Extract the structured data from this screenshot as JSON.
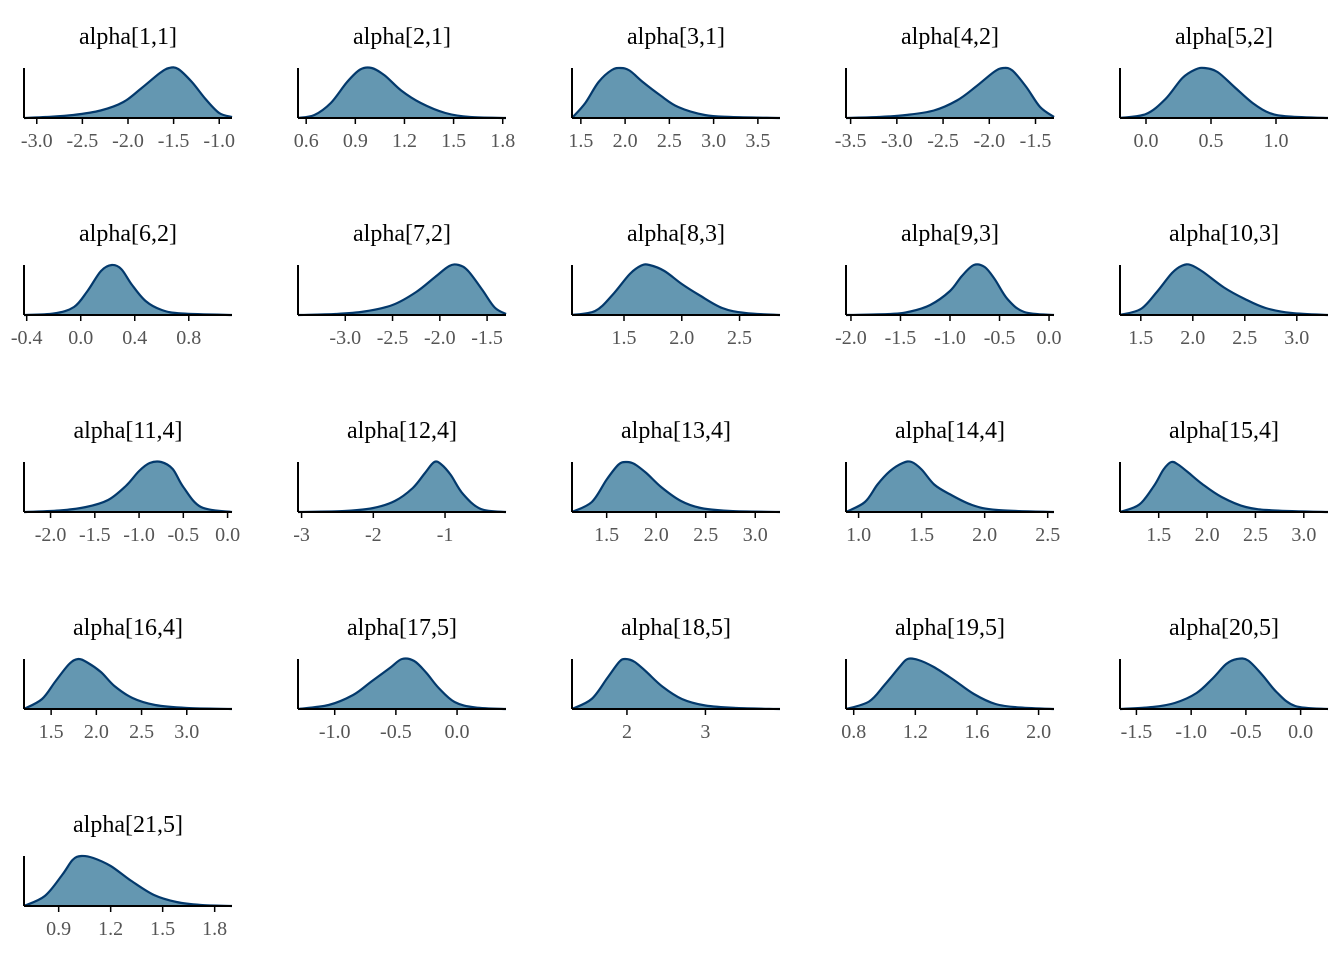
{
  "colors": {
    "fill": "#6497b1",
    "line": "#03396c",
    "axis": "#000000",
    "tick_text": "#555555"
  },
  "chart_data": [
    {
      "type": "area",
      "title": "alpha[1,1]",
      "xlim": [
        -3.14,
        -0.86
      ],
      "ticks": [
        -3.0,
        -2.5,
        -2.0,
        -1.5,
        -1.0
      ],
      "tick_labels": [
        "-3.0",
        "-2.5",
        "-2.0",
        "-1.5",
        "-1.0"
      ],
      "x": [
        -3.14,
        -2.9,
        -2.6,
        -2.3,
        -2.05,
        -1.85,
        -1.65,
        -1.55,
        -1.45,
        -1.3,
        -1.15,
        -1.0,
        -0.86
      ],
      "y": [
        0.0,
        0.02,
        0.06,
        0.15,
        0.32,
        0.6,
        0.9,
        1.0,
        0.98,
        0.72,
        0.38,
        0.1,
        0.02
      ]
    },
    {
      "type": "area",
      "title": "alpha[2,1]",
      "xlim": [
        0.55,
        1.82
      ],
      "ticks": [
        0.6,
        0.9,
        1.2,
        1.5,
        1.8
      ],
      "tick_labels": [
        "0.6",
        "0.9",
        "1.2",
        "1.5",
        "1.8"
      ],
      "x": [
        0.55,
        0.65,
        0.75,
        0.85,
        0.93,
        1.0,
        1.08,
        1.18,
        1.3,
        1.45,
        1.6,
        1.82
      ],
      "y": [
        0.0,
        0.06,
        0.3,
        0.72,
        0.97,
        1.0,
        0.85,
        0.55,
        0.3,
        0.1,
        0.02,
        0.0
      ]
    },
    {
      "type": "area",
      "title": "alpha[3,1]",
      "xlim": [
        1.4,
        3.75
      ],
      "ticks": [
        1.5,
        2.0,
        2.5,
        3.0,
        3.5
      ],
      "tick_labels": [
        "1.5",
        "2.0",
        "2.5",
        "3.0",
        "3.5"
      ],
      "x": [
        1.4,
        1.55,
        1.7,
        1.85,
        1.95,
        2.05,
        2.2,
        2.4,
        2.6,
        2.9,
        3.2,
        3.75
      ],
      "y": [
        0.0,
        0.3,
        0.72,
        0.96,
        1.0,
        0.95,
        0.72,
        0.45,
        0.22,
        0.06,
        0.02,
        0.0
      ]
    },
    {
      "type": "area",
      "title": "alpha[4,2]",
      "xlim": [
        -3.55,
        -1.3
      ],
      "ticks": [
        -3.5,
        -3.0,
        -2.5,
        -2.0,
        -1.5
      ],
      "tick_labels": [
        "-3.5",
        "-3.0",
        "-2.5",
        "-2.0",
        "-1.5"
      ],
      "x": [
        -3.55,
        -3.2,
        -2.9,
        -2.6,
        -2.35,
        -2.15,
        -1.95,
        -1.85,
        -1.75,
        -1.6,
        -1.45,
        -1.3
      ],
      "y": [
        0.0,
        0.02,
        0.06,
        0.15,
        0.35,
        0.62,
        0.92,
        1.0,
        0.95,
        0.62,
        0.22,
        0.02
      ]
    },
    {
      "type": "area",
      "title": "alpha[5,2]",
      "xlim": [
        -0.2,
        1.4
      ],
      "ticks": [
        0.0,
        0.5,
        1.0
      ],
      "tick_labels": [
        "0.0",
        "0.5",
        "1.0"
      ],
      "x": [
        -0.2,
        0.0,
        0.15,
        0.28,
        0.38,
        0.45,
        0.55,
        0.68,
        0.82,
        0.95,
        1.1,
        1.4
      ],
      "y": [
        0.0,
        0.08,
        0.38,
        0.8,
        0.97,
        1.0,
        0.92,
        0.62,
        0.3,
        0.1,
        0.03,
        0.0
      ]
    },
    {
      "type": "area",
      "title": "alpha[6,2]",
      "xlim": [
        -0.42,
        1.12
      ],
      "ticks": [
        -0.4,
        0.0,
        0.4,
        0.8
      ],
      "tick_labels": [
        "-0.4",
        "0.0",
        "0.4",
        "0.8"
      ],
      "x": [
        -0.42,
        -0.2,
        -0.05,
        0.05,
        0.15,
        0.23,
        0.3,
        0.38,
        0.48,
        0.6,
        0.75,
        1.12
      ],
      "y": [
        0.0,
        0.03,
        0.16,
        0.48,
        0.88,
        1.0,
        0.92,
        0.6,
        0.28,
        0.1,
        0.03,
        0.0
      ]
    },
    {
      "type": "area",
      "title": "alpha[7,2]",
      "xlim": [
        -3.5,
        -1.3
      ],
      "ticks": [
        -3.0,
        -2.5,
        -2.0,
        -1.5
      ],
      "tick_labels": [
        "-3.0",
        "-2.5",
        "-2.0",
        "-1.5"
      ],
      "x": [
        -3.5,
        -3.1,
        -2.8,
        -2.5,
        -2.25,
        -2.05,
        -1.9,
        -1.8,
        -1.7,
        -1.55,
        -1.42,
        -1.3
      ],
      "y": [
        0.0,
        0.02,
        0.07,
        0.2,
        0.46,
        0.76,
        0.98,
        1.0,
        0.88,
        0.5,
        0.15,
        0.02
      ]
    },
    {
      "type": "area",
      "title": "alpha[8,3]",
      "xlim": [
        1.05,
        2.85
      ],
      "ticks": [
        1.5,
        2.0,
        2.5
      ],
      "tick_labels": [
        "1.5",
        "2.0",
        "2.5"
      ],
      "x": [
        1.05,
        1.25,
        1.4,
        1.55,
        1.65,
        1.72,
        1.85,
        2.0,
        2.15,
        2.35,
        2.55,
        2.85
      ],
      "y": [
        0.0,
        0.08,
        0.4,
        0.82,
        0.99,
        1.0,
        0.88,
        0.62,
        0.4,
        0.14,
        0.04,
        0.0
      ]
    },
    {
      "type": "area",
      "title": "alpha[9,3]",
      "xlim": [
        -2.05,
        0.05
      ],
      "ticks": [
        -2.0,
        -1.5,
        -1.0,
        -0.5,
        0.0
      ],
      "tick_labels": [
        "-2.0",
        "-1.5",
        "-1.0",
        "-0.5",
        "0.0"
      ],
      "x": [
        -2.05,
        -1.6,
        -1.4,
        -1.2,
        -1.0,
        -0.88,
        -0.76,
        -0.65,
        -0.55,
        -0.42,
        -0.25,
        0.05
      ],
      "y": [
        0.0,
        0.02,
        0.07,
        0.2,
        0.48,
        0.78,
        1.0,
        0.96,
        0.72,
        0.32,
        0.06,
        0.0
      ]
    },
    {
      "type": "area",
      "title": "alpha[10,3]",
      "xlim": [
        1.3,
        3.3
      ],
      "ticks": [
        1.5,
        2.0,
        2.5,
        3.0
      ],
      "tick_labels": [
        "1.5",
        "2.0",
        "2.5",
        "3.0"
      ],
      "x": [
        1.3,
        1.5,
        1.65,
        1.8,
        1.9,
        1.98,
        2.1,
        2.3,
        2.5,
        2.7,
        2.95,
        3.3
      ],
      "y": [
        0.0,
        0.12,
        0.45,
        0.84,
        0.99,
        1.0,
        0.86,
        0.55,
        0.32,
        0.14,
        0.04,
        0.0
      ]
    },
    {
      "type": "area",
      "title": "alpha[11,4]",
      "xlim": [
        -2.3,
        0.05
      ],
      "ticks": [
        -2.0,
        -1.5,
        -1.0,
        -0.5,
        0.0
      ],
      "tick_labels": [
        "-2.0",
        "-1.5",
        "-1.0",
        "-0.5",
        "0.0"
      ],
      "x": [
        -2.3,
        -1.9,
        -1.6,
        -1.35,
        -1.15,
        -1.0,
        -0.88,
        -0.75,
        -0.62,
        -0.5,
        -0.3,
        0.05
      ],
      "y": [
        0.0,
        0.03,
        0.1,
        0.24,
        0.52,
        0.82,
        0.98,
        1.0,
        0.86,
        0.5,
        0.1,
        0.0
      ]
    },
    {
      "type": "area",
      "title": "alpha[12,4]",
      "xlim": [
        -3.05,
        -0.15
      ],
      "ticks": [
        -3,
        -2,
        -1
      ],
      "tick_labels": [
        "-3",
        "-2",
        "-1"
      ],
      "x": [
        -3.05,
        -2.4,
        -2.0,
        -1.7,
        -1.45,
        -1.28,
        -1.15,
        -1.05,
        -0.92,
        -0.75,
        -0.5,
        -0.15
      ],
      "y": [
        0.0,
        0.02,
        0.08,
        0.22,
        0.48,
        0.78,
        1.0,
        0.95,
        0.74,
        0.36,
        0.06,
        0.0
      ]
    },
    {
      "type": "area",
      "title": "alpha[13,4]",
      "xlim": [
        1.15,
        3.25
      ],
      "ticks": [
        1.5,
        2.0,
        2.5,
        3.0
      ],
      "tick_labels": [
        "1.5",
        "2.0",
        "2.5",
        "3.0"
      ],
      "x": [
        1.15,
        1.35,
        1.5,
        1.62,
        1.7,
        1.78,
        1.9,
        2.05,
        2.25,
        2.45,
        2.75,
        3.25
      ],
      "y": [
        0.0,
        0.2,
        0.65,
        0.95,
        1.0,
        0.96,
        0.78,
        0.5,
        0.22,
        0.08,
        0.02,
        0.0
      ]
    },
    {
      "type": "area",
      "title": "alpha[14,4]",
      "xlim": [
        0.9,
        2.55
      ],
      "ticks": [
        1.0,
        1.5,
        2.0,
        2.5
      ],
      "tick_labels": [
        "1.0",
        "1.5",
        "2.0",
        "2.5"
      ],
      "x": [
        0.9,
        1.05,
        1.15,
        1.25,
        1.35,
        1.42,
        1.5,
        1.6,
        1.72,
        1.9,
        2.1,
        2.55
      ],
      "y": [
        0.0,
        0.2,
        0.55,
        0.82,
        0.98,
        1.0,
        0.85,
        0.55,
        0.36,
        0.14,
        0.04,
        0.0
      ]
    },
    {
      "type": "area",
      "title": "alpha[15,4]",
      "xlim": [
        1.1,
        3.25
      ],
      "ticks": [
        1.5,
        2.0,
        2.5,
        3.0
      ],
      "tick_labels": [
        "1.5",
        "2.0",
        "2.5",
        "3.0"
      ],
      "x": [
        1.1,
        1.3,
        1.45,
        1.55,
        1.63,
        1.7,
        1.8,
        1.95,
        2.15,
        2.4,
        2.7,
        3.25
      ],
      "y": [
        0.0,
        0.15,
        0.52,
        0.85,
        1.0,
        0.95,
        0.8,
        0.56,
        0.3,
        0.1,
        0.03,
        0.0
      ]
    },
    {
      "type": "area",
      "title": "alpha[16,4]",
      "xlim": [
        1.2,
        3.5
      ],
      "ticks": [
        1.5,
        2.0,
        2.5,
        3.0
      ],
      "tick_labels": [
        "1.5",
        "2.0",
        "2.5",
        "3.0"
      ],
      "x": [
        1.2,
        1.4,
        1.55,
        1.7,
        1.8,
        1.9,
        2.05,
        2.2,
        2.4,
        2.65,
        3.0,
        3.5
      ],
      "y": [
        0.0,
        0.2,
        0.56,
        0.9,
        1.0,
        0.93,
        0.74,
        0.46,
        0.22,
        0.08,
        0.02,
        0.0
      ]
    },
    {
      "type": "area",
      "title": "alpha[17,5]",
      "xlim": [
        -1.3,
        0.4
      ],
      "ticks": [
        -1.0,
        -0.5,
        0.0
      ],
      "tick_labels": [
        "-1.0",
        "-0.5",
        "0.0"
      ],
      "x": [
        -1.3,
        -1.05,
        -0.85,
        -0.7,
        -0.55,
        -0.45,
        -0.35,
        -0.25,
        -0.15,
        -0.02,
        0.15,
        0.4
      ],
      "y": [
        0.0,
        0.08,
        0.28,
        0.55,
        0.82,
        1.0,
        0.96,
        0.72,
        0.42,
        0.14,
        0.03,
        0.0
      ]
    },
    {
      "type": "area",
      "title": "alpha[18,5]",
      "xlim": [
        1.3,
        3.95
      ],
      "ticks": [
        2,
        3
      ],
      "tick_labels": [
        "2",
        "3"
      ],
      "x": [
        1.3,
        1.55,
        1.75,
        1.9,
        1.98,
        2.1,
        2.25,
        2.45,
        2.7,
        3.0,
        3.4,
        3.95
      ],
      "y": [
        0.0,
        0.2,
        0.62,
        0.94,
        1.0,
        0.94,
        0.74,
        0.45,
        0.2,
        0.07,
        0.02,
        0.0
      ]
    },
    {
      "type": "area",
      "title": "alpha[19,5]",
      "xlim": [
        0.75,
        2.1
      ],
      "ticks": [
        0.8,
        1.2,
        1.6,
        2.0
      ],
      "tick_labels": [
        "0.8",
        "1.2",
        "1.6",
        "2.0"
      ],
      "x": [
        0.75,
        0.9,
        1.0,
        1.1,
        1.15,
        1.22,
        1.32,
        1.45,
        1.58,
        1.72,
        1.88,
        2.1
      ],
      "y": [
        0.0,
        0.15,
        0.48,
        0.85,
        1.0,
        0.98,
        0.84,
        0.58,
        0.3,
        0.1,
        0.03,
        0.0
      ]
    },
    {
      "type": "area",
      "title": "alpha[20,5]",
      "xlim": [
        -1.65,
        0.25
      ],
      "ticks": [
        -1.5,
        -1.0,
        -0.5,
        0.0
      ],
      "tick_labels": [
        "-1.5",
        "-1.0",
        "-0.5",
        "0.0"
      ],
      "x": [
        -1.65,
        -1.35,
        -1.15,
        -0.95,
        -0.8,
        -0.68,
        -0.58,
        -0.48,
        -0.35,
        -0.22,
        -0.05,
        0.25
      ],
      "y": [
        0.0,
        0.04,
        0.12,
        0.32,
        0.62,
        0.9,
        1.0,
        0.97,
        0.68,
        0.34,
        0.06,
        0.0
      ]
    },
    {
      "type": "area",
      "title": "alpha[21,5]",
      "xlim": [
        0.7,
        1.9
      ],
      "ticks": [
        0.9,
        1.2,
        1.5,
        1.8
      ],
      "tick_labels": [
        "0.9",
        "1.2",
        "1.5",
        "1.8"
      ],
      "x": [
        0.7,
        0.82,
        0.92,
        0.98,
        1.03,
        1.1,
        1.2,
        1.32,
        1.45,
        1.58,
        1.72,
        1.9
      ],
      "y": [
        0.0,
        0.2,
        0.62,
        0.92,
        1.0,
        0.96,
        0.8,
        0.5,
        0.22,
        0.08,
        0.02,
        0.0
      ]
    }
  ]
}
